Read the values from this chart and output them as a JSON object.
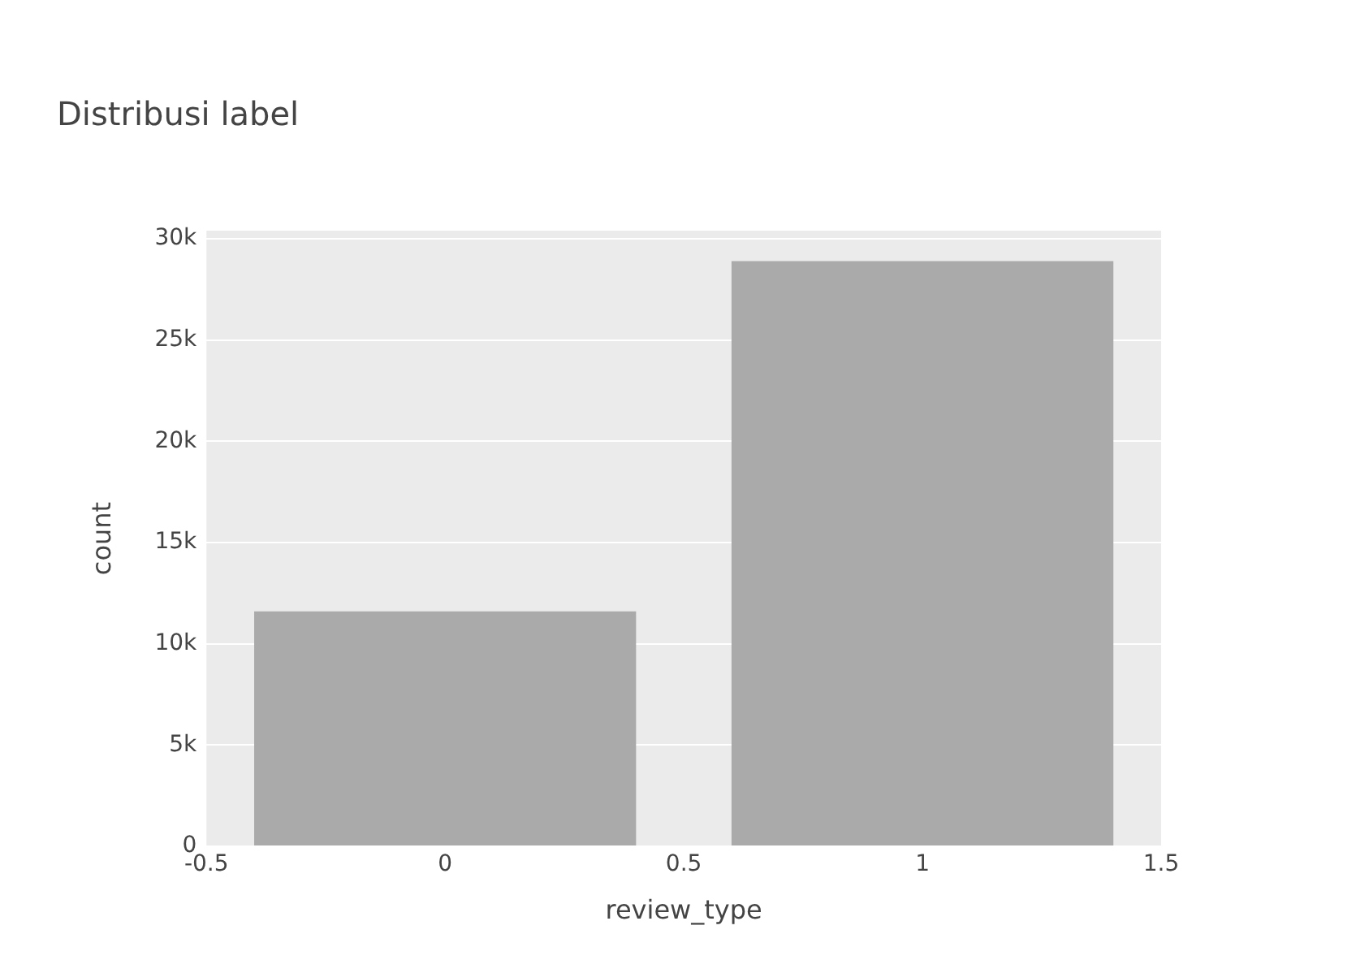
{
  "chart_data": {
    "type": "bar",
    "title": "Distribusi label",
    "xlabel": "review_type",
    "ylabel": "count",
    "x": [
      0,
      1
    ],
    "values": [
      11600,
      28900
    ],
    "color": "#aaaaaa",
    "xlim": [
      -0.5,
      1.5
    ],
    "xticks": [
      -0.5,
      0,
      0.5,
      1,
      1.5
    ],
    "ylim": [
      0,
      30400
    ],
    "yticks": [
      0,
      {
        "value": 5000,
        "label": "5k"
      },
      {
        "value": 10000,
        "label": "10k"
      },
      {
        "value": 15000,
        "label": "15k"
      },
      {
        "value": 20000,
        "label": "20k"
      },
      {
        "value": 25000,
        "label": "25k"
      },
      {
        "value": 30000,
        "label": "30k"
      }
    ],
    "grid": "y"
  }
}
